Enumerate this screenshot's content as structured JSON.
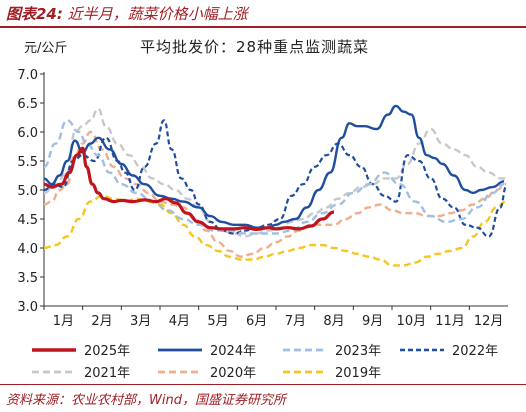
{
  "figure_title_prefix": "图表24:",
  "figure_title_text": "近半月，蔬菜价格小幅上涨",
  "source": "资料来源：农业农村部，Wind，国盛证券研究所",
  "chart_data": {
    "type": "line",
    "title": "平均批发价：28种重点监测蔬菜",
    "ylabel": "元/公斤",
    "xlabel": "",
    "ylim": [
      3.0,
      7.0
    ],
    "yticks": [
      "3.0",
      "3.5",
      "4.0",
      "4.5",
      "5.0",
      "5.5",
      "6.0",
      "6.5",
      "7.0"
    ],
    "x_ticks": [
      "1月",
      "2月",
      "3月",
      "4月",
      "5月",
      "6月",
      "7月",
      "8月",
      "9月",
      "10月",
      "11月",
      "12月"
    ],
    "x_range_months": [
      1.0,
      13.0
    ],
    "grid": false,
    "legend_position": "bottom",
    "series": [
      {
        "name": "2025年",
        "color": "#c0141c",
        "style": "solid",
        "width": 3.2,
        "x": [
          1.0,
          1.2,
          1.45,
          1.65,
          1.85,
          2.0,
          2.1,
          2.25,
          2.4,
          2.55,
          2.8,
          3.0,
          3.3,
          3.6,
          3.9,
          4.15,
          4.4,
          4.7,
          5.0,
          5.3,
          5.6,
          5.9,
          6.2,
          6.5,
          6.8,
          7.0,
          7.3,
          7.6,
          7.9,
          8.2,
          8.5
        ],
        "values": [
          5.1,
          5.05,
          5.1,
          5.3,
          5.6,
          5.72,
          5.4,
          5.1,
          4.95,
          4.85,
          4.8,
          4.82,
          4.8,
          4.83,
          4.8,
          4.85,
          4.78,
          4.6,
          4.45,
          4.35,
          4.33,
          4.33,
          4.35,
          4.32,
          4.35,
          4.33,
          4.35,
          4.33,
          4.38,
          4.5,
          4.62
        ]
      },
      {
        "name": "2024年",
        "color": "#1f4e9e",
        "style": "solid",
        "width": 2.4,
        "x": [
          1.0,
          1.2,
          1.4,
          1.6,
          1.8,
          2.0,
          2.2,
          2.4,
          2.7,
          3.0,
          3.3,
          3.6,
          4.0,
          4.3,
          4.6,
          5.0,
          5.3,
          5.6,
          5.9,
          6.2,
          6.5,
          6.8,
          7.0,
          7.2,
          7.5,
          7.8,
          8.1,
          8.4,
          8.7,
          8.9,
          9.1,
          9.3,
          9.6,
          9.9,
          10.1,
          10.3,
          10.5,
          10.7,
          10.9,
          11.1,
          11.3,
          11.6,
          11.9,
          12.1,
          12.3,
          12.6,
          12.9
        ],
        "values": [
          5.2,
          5.1,
          5.25,
          5.5,
          5.85,
          5.65,
          5.8,
          5.9,
          5.7,
          5.45,
          5.25,
          5.1,
          4.9,
          4.85,
          4.8,
          4.7,
          4.55,
          4.45,
          4.4,
          4.4,
          4.35,
          4.35,
          4.4,
          4.45,
          4.5,
          4.7,
          5.0,
          5.3,
          5.9,
          6.15,
          6.1,
          6.1,
          6.05,
          6.3,
          6.45,
          6.35,
          6.3,
          5.9,
          5.6,
          5.55,
          5.45,
          5.25,
          5.0,
          4.95,
          5.0,
          5.05,
          5.15
        ]
      },
      {
        "name": "2023年",
        "color": "#9fbfe3",
        "style": "dash",
        "width": 2.4,
        "x": [
          1.0,
          1.3,
          1.6,
          1.9,
          2.1,
          2.4,
          2.7,
          3.0,
          3.4,
          3.8,
          4.2,
          4.6,
          5.0,
          5.4,
          5.8,
          6.2,
          6.6,
          7.0,
          7.4,
          7.8,
          8.2,
          8.6,
          9.0,
          9.4,
          9.8,
          10.2,
          10.6,
          11.0,
          11.4,
          11.8,
          12.2,
          12.6,
          12.9
        ],
        "values": [
          5.4,
          5.8,
          6.2,
          6.0,
          5.8,
          5.6,
          5.3,
          5.1,
          4.95,
          4.8,
          4.65,
          4.5,
          4.4,
          4.3,
          4.3,
          4.25,
          4.25,
          4.25,
          4.3,
          4.45,
          4.6,
          4.75,
          4.95,
          5.1,
          5.3,
          5.1,
          4.8,
          4.55,
          4.45,
          4.5,
          4.7,
          4.95,
          5.1
        ]
      },
      {
        "name": "2022年",
        "color": "#1f4e9e",
        "style": "shortdash",
        "width": 2.2,
        "x": [
          1.0,
          1.25,
          1.5,
          1.75,
          2.0,
          2.3,
          2.6,
          2.9,
          3.1,
          3.35,
          3.6,
          3.9,
          4.1,
          4.3,
          4.55,
          4.8,
          5.0,
          5.3,
          5.6,
          5.9,
          6.2,
          6.5,
          6.8,
          7.1,
          7.4,
          7.7,
          8.0,
          8.3,
          8.6,
          8.9,
          9.2,
          9.5,
          9.8,
          10.1,
          10.4,
          10.7,
          11.0,
          11.3,
          11.6,
          11.9,
          12.2,
          12.5,
          12.8,
          12.95
        ],
        "values": [
          5.0,
          5.1,
          5.05,
          5.5,
          5.6,
          5.5,
          5.9,
          5.5,
          5.3,
          5.0,
          5.4,
          5.8,
          6.2,
          5.7,
          5.2,
          5.0,
          4.75,
          4.45,
          4.3,
          4.25,
          4.3,
          4.35,
          4.4,
          4.5,
          4.9,
          5.1,
          5.4,
          5.6,
          5.8,
          5.6,
          5.4,
          5.1,
          4.9,
          4.8,
          5.6,
          5.5,
          5.2,
          4.85,
          4.7,
          4.4,
          4.35,
          4.2,
          4.7,
          5.05
        ]
      },
      {
        "name": "2021年",
        "color": "#c8c8c8",
        "style": "dash",
        "width": 2.4,
        "x": [
          1.0,
          1.3,
          1.6,
          1.8,
          2.0,
          2.2,
          2.4,
          2.6,
          2.9,
          3.2,
          3.5,
          3.8,
          4.1,
          4.4,
          4.7,
          5.0,
          5.3,
          5.6,
          5.9,
          6.2,
          6.5,
          6.8,
          7.1,
          7.4,
          7.7,
          8.0,
          8.3,
          8.6,
          8.9,
          9.2,
          9.5,
          9.8,
          10.1,
          10.4,
          10.7,
          11.0,
          11.3,
          11.6,
          11.9,
          12.2,
          12.5,
          12.8,
          12.95
        ],
        "values": [
          4.95,
          5.1,
          5.3,
          6.0,
          6.1,
          6.2,
          6.4,
          6.1,
          5.8,
          5.6,
          5.4,
          5.2,
          5.1,
          5.0,
          4.85,
          4.7,
          4.45,
          4.3,
          4.25,
          4.2,
          4.25,
          4.3,
          4.35,
          4.45,
          4.5,
          4.6,
          4.7,
          4.85,
          4.95,
          5.05,
          5.1,
          5.2,
          5.2,
          5.45,
          5.8,
          6.05,
          5.8,
          5.7,
          5.6,
          5.4,
          5.3,
          5.2,
          5.2
        ]
      },
      {
        "name": "2020年",
        "color": "#f0ae8c",
        "style": "dash",
        "width": 2.4,
        "x": [
          1.0,
          1.2,
          1.4,
          1.6,
          1.8,
          2.0,
          2.2,
          2.5,
          2.8,
          3.1,
          3.4,
          3.7,
          4.0,
          4.3,
          4.6,
          4.9,
          5.2,
          5.5,
          5.8,
          6.1,
          6.4,
          6.7,
          7.0,
          7.3,
          7.6,
          7.9,
          8.2,
          8.5,
          8.8,
          9.1,
          9.4,
          9.7,
          10.0,
          10.3,
          10.6,
          10.9,
          11.2,
          11.5,
          11.8,
          12.1,
          12.4,
          12.7,
          12.95
        ],
        "values": [
          4.75,
          4.8,
          5.0,
          5.1,
          5.6,
          5.8,
          6.0,
          5.7,
          5.4,
          5.2,
          5.1,
          4.95,
          4.8,
          4.75,
          4.7,
          4.5,
          4.3,
          4.1,
          3.95,
          3.85,
          3.9,
          4.0,
          4.1,
          4.2,
          4.3,
          4.4,
          4.4,
          4.4,
          4.5,
          4.6,
          4.7,
          4.75,
          4.65,
          4.6,
          4.6,
          4.55,
          4.55,
          4.6,
          4.65,
          4.75,
          4.85,
          5.0,
          5.1
        ]
      },
      {
        "name": "2019年",
        "color": "#f6c51f",
        "style": "dash",
        "width": 2.4,
        "x": [
          1.0,
          1.3,
          1.6,
          1.9,
          2.2,
          2.5,
          2.8,
          3.1,
          3.4,
          3.7,
          4.0,
          4.3,
          4.6,
          4.9,
          5.2,
          5.5,
          5.8,
          6.1,
          6.4,
          6.7,
          7.0,
          7.3,
          7.6,
          7.9,
          8.2,
          8.5,
          8.8,
          9.1,
          9.4,
          9.7,
          10.0,
          10.3,
          10.6,
          10.9,
          11.2,
          11.5,
          11.8,
          12.1,
          12.4,
          12.7,
          12.95
        ],
        "values": [
          4.0,
          4.05,
          4.2,
          4.5,
          4.8,
          4.9,
          4.85,
          4.8,
          4.85,
          4.8,
          4.75,
          4.6,
          4.4,
          4.2,
          4.05,
          3.95,
          3.85,
          3.8,
          3.8,
          3.85,
          3.9,
          3.95,
          4.0,
          4.05,
          4.05,
          4.0,
          3.95,
          3.9,
          3.85,
          3.8,
          3.7,
          3.7,
          3.75,
          3.85,
          3.9,
          3.95,
          4.0,
          4.2,
          4.45,
          4.7,
          4.8
        ]
      }
    ]
  }
}
